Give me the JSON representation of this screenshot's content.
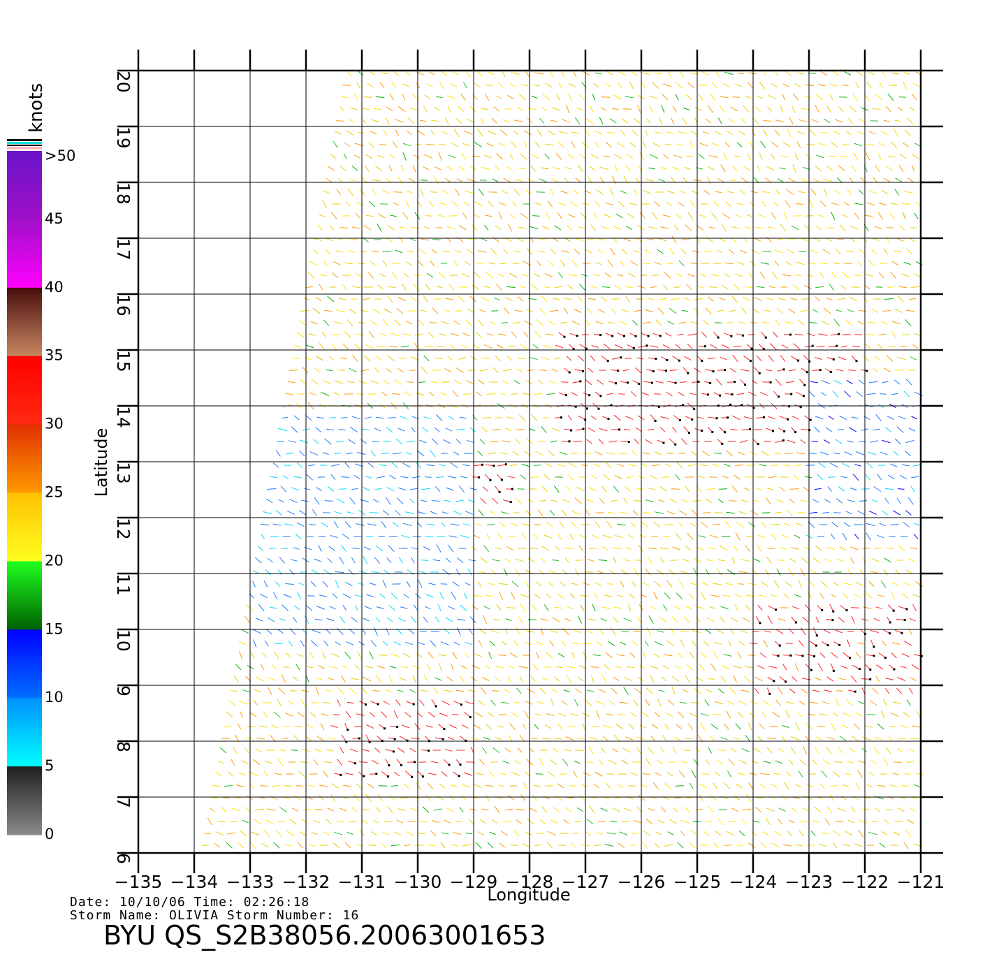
{
  "colorbar": {
    "unit_label": "knots",
    "tick_labels": [
      ">50",
      "45",
      "40",
      "35",
      "30",
      "25",
      "20",
      "15",
      "10",
      "5",
      "0"
    ],
    "bands": [
      {
        "from": 50,
        "to": 45,
        "colors": [
          "#6a14c8",
          "#a010c8"
        ]
      },
      {
        "from": 45,
        "to": 40,
        "colors": [
          "#a010c8",
          "#ff00ff"
        ]
      },
      {
        "from": 40,
        "to": 35,
        "colors": [
          "#4a0e0e",
          "#c88860"
        ]
      },
      {
        "from": 35,
        "to": 30,
        "colors": [
          "#ff0000",
          "#ff2a10"
        ]
      },
      {
        "from": 30,
        "to": 25,
        "colors": [
          "#e03000",
          "#ff9a00"
        ]
      },
      {
        "from": 25,
        "to": 20,
        "colors": [
          "#ffc000",
          "#ffff20"
        ]
      },
      {
        "from": 20,
        "to": 15,
        "colors": [
          "#20ff20",
          "#006000"
        ]
      },
      {
        "from": 15,
        "to": 10,
        "colors": [
          "#0000ff",
          "#0070ff"
        ]
      },
      {
        "from": 10,
        "to": 5,
        "colors": [
          "#0090ff",
          "#00ffff"
        ]
      },
      {
        "from": 5,
        "to": 0,
        "colors": [
          "#202020",
          "#8a8a8a"
        ]
      }
    ]
  },
  "map": {
    "x_axis_label": "Longitude",
    "y_axis_label": "Latitude",
    "lon_range": [
      -135,
      -121
    ],
    "lat_range": [
      6,
      20
    ],
    "lon_ticks": [
      "-135",
      "-134",
      "-133",
      "-132",
      "-131",
      "-130",
      "-129",
      "-128",
      "-127",
      "-126",
      "-125",
      "-124",
      "-123",
      "-122",
      "-121"
    ],
    "lat_ticks": [
      "6",
      "7",
      "8",
      "9",
      "10",
      "11",
      "12",
      "13",
      "14",
      "15",
      "16",
      "17",
      "18",
      "19",
      "20"
    ],
    "swath_lon_at_lat6": -133.9,
    "swath_lon_at_lat20": -131.3,
    "wind_field_regions": [
      {
        "name": "strong-band-north",
        "lon": [
          -127.5,
          -122
        ],
        "lat": [
          13.2,
          15.4
        ],
        "speed_kn": 33
      },
      {
        "name": "strong-cluster-west",
        "lon": [
          -129.8,
          -128.3
        ],
        "lat": [
          12.2,
          13.0
        ],
        "speed_kn": 32
      },
      {
        "name": "strong-cluster-south",
        "lon": [
          -131.5,
          -129
        ],
        "lat": [
          7.2,
          8.9
        ],
        "speed_kn": 31
      },
      {
        "name": "weak-center-west",
        "lon": [
          -133,
          -129
        ],
        "lat": [
          9.6,
          13.8
        ],
        "speed_kn": 9
      },
      {
        "name": "weak-east",
        "lon": [
          -123,
          -121
        ],
        "lat": [
          11.5,
          14.5
        ],
        "speed_kn": 10
      },
      {
        "name": "strong-band-east",
        "lon": [
          -124,
          -121
        ],
        "lat": [
          8.8,
          10.4
        ],
        "speed_kn": 30
      }
    ],
    "vector_colors": [
      "#0000ff",
      "#1aa0ff",
      "#00e0ff",
      "#00c000",
      "#18c818",
      "#e8c800",
      "#ffff40",
      "#ff9a00",
      "#ff2020",
      "#000000"
    ]
  },
  "info": {
    "date_line": "Date: 10/10/06   Time: 02:26:18",
    "storm_line": "Storm  Name: OLIVIA   Storm  Number: 16",
    "title": "BYU  QS_S2B38056.20063001653"
  }
}
